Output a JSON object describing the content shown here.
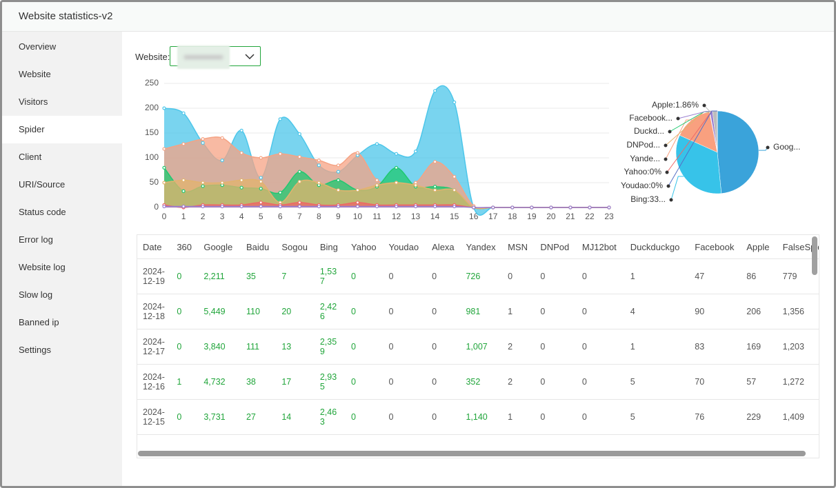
{
  "window": {
    "title": "Website statistics-v2"
  },
  "sidebar": {
    "items": [
      "Overview",
      "Website",
      "Visitors",
      "Spider",
      "Client",
      "URI/Source",
      "Status code",
      "Error log",
      "Website log",
      "Slow log",
      "Banned ip",
      "Settings"
    ],
    "active": 3
  },
  "filter": {
    "label": "Website:"
  },
  "chart_data": [
    {
      "type": "area",
      "x": [
        0,
        1,
        2,
        3,
        4,
        5,
        6,
        7,
        8,
        9,
        10,
        11,
        12,
        13,
        14,
        15,
        16,
        17,
        18,
        19,
        20,
        21,
        22,
        23
      ],
      "xlim": [
        0,
        23
      ],
      "xticks": [
        0,
        1,
        2,
        3,
        4,
        5,
        6,
        7,
        8,
        9,
        10,
        11,
        12,
        13,
        14,
        15,
        16,
        17,
        18,
        19,
        20,
        21,
        22,
        23
      ],
      "ylim": [
        0,
        250
      ],
      "yticks": [
        0,
        50,
        100,
        150,
        200,
        250
      ],
      "grid": true,
      "series": [
        {
          "color": "#4cc6ea",
          "values": [
            200,
            190,
            130,
            95,
            155,
            60,
            178,
            148,
            85,
            72,
            105,
            128,
            108,
            113,
            235,
            212,
            0,
            0,
            0,
            0,
            0,
            0,
            0,
            0
          ]
        },
        {
          "color": "#f5a384",
          "values": [
            118,
            128,
            138,
            140,
            110,
            100,
            108,
            102,
            95,
            85,
            110,
            55,
            50,
            50,
            92,
            62,
            3,
            0,
            0,
            0,
            0,
            0,
            0,
            0
          ]
        },
        {
          "color": "#1fc870",
          "values": [
            80,
            33,
            43,
            45,
            40,
            38,
            30,
            72,
            45,
            55,
            35,
            42,
            80,
            42,
            42,
            35,
            0,
            0,
            0,
            0,
            0,
            0,
            0,
            0
          ]
        },
        {
          "color": "#e2b36e",
          "values": [
            50,
            55,
            50,
            50,
            55,
            52,
            10,
            52,
            50,
            35,
            35,
            45,
            50,
            45,
            35,
            35,
            0,
            0,
            0,
            0,
            0,
            0,
            0,
            0
          ]
        },
        {
          "color": "#ee6666",
          "values": [
            5,
            0,
            5,
            5,
            5,
            10,
            5,
            10,
            5,
            5,
            10,
            5,
            5,
            5,
            5,
            5,
            0,
            0,
            0,
            0,
            0,
            0,
            0,
            0
          ]
        },
        {
          "color": "#9a7fd1",
          "values": [
            2,
            2,
            2,
            2,
            2,
            2,
            2,
            2,
            2,
            2,
            2,
            2,
            2,
            2,
            2,
            2,
            0,
            0,
            0,
            0,
            0,
            0,
            0,
            0
          ]
        }
      ]
    },
    {
      "type": "pie",
      "labels": [
        "Goog...",
        "Bing:33...",
        "Yande...",
        "DNPod...",
        "Duckd...",
        "Facebook...",
        "Apple:1.86%",
        "Yahoo:0%",
        "Youdao:0%"
      ],
      "values": [
        48,
        33,
        15,
        0.1,
        0.1,
        1,
        1.86,
        0,
        0
      ],
      "colors": [
        "#3aa3da",
        "#37c3e9",
        "#f9a07f",
        "#e2b36e",
        "#1fc870",
        "#9a7fd1",
        "#bdbdbd",
        "#ee6666",
        "#5470c6"
      ]
    }
  ],
  "table": {
    "header": [
      "Date",
      "360",
      "Google",
      "Baidu",
      "Sogou",
      "Bing",
      "Yahoo",
      "Youdao",
      "Alexa",
      "Yandex",
      "MSN",
      "DNPod",
      "MJ12bot",
      "Duckduckgo",
      "Facebook",
      "Apple",
      "FalseSpider"
    ],
    "rows": [
      [
        "2024-12-19",
        "0",
        "2,211",
        "35",
        "7",
        "1,537",
        "0",
        "0",
        "0",
        "726",
        "0",
        "0",
        "0",
        "1",
        "47",
        "86",
        "779"
      ],
      [
        "2024-12-18",
        "0",
        "5,449",
        "110",
        "20",
        "2,426",
        "0",
        "0",
        "0",
        "981",
        "1",
        "0",
        "0",
        "4",
        "90",
        "206",
        "1,356"
      ],
      [
        "2024-12-17",
        "0",
        "3,840",
        "111",
        "13",
        "2,359",
        "0",
        "0",
        "0",
        "1,007",
        "2",
        "0",
        "0",
        "1",
        "83",
        "169",
        "1,203"
      ],
      [
        "2024-12-16",
        "1",
        "4,732",
        "38",
        "17",
        "2,935",
        "0",
        "0",
        "0",
        "352",
        "2",
        "0",
        "0",
        "5",
        "70",
        "57",
        "1,272"
      ],
      [
        "2024-12-15",
        "0",
        "3,731",
        "27",
        "14",
        "2,463",
        "0",
        "0",
        "0",
        "1,140",
        "1",
        "0",
        "0",
        "5",
        "76",
        "229",
        "1,409"
      ]
    ]
  }
}
